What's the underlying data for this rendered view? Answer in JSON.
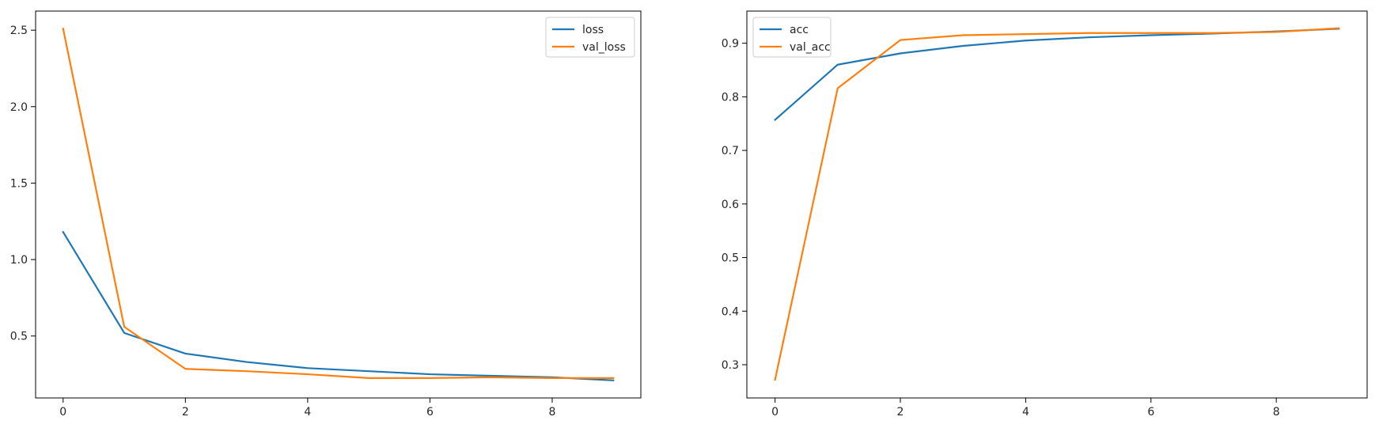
{
  "chart_data": [
    {
      "type": "line",
      "x": [
        0,
        1,
        2,
        3,
        4,
        5,
        6,
        7,
        8,
        9
      ],
      "series": [
        {
          "name": "loss",
          "color": "#1f77b4",
          "values": [
            1.18,
            0.52,
            0.385,
            0.33,
            0.29,
            0.27,
            0.25,
            0.24,
            0.23,
            0.21
          ]
        },
        {
          "name": "val_loss",
          "color": "#ff7f0e",
          "values": [
            2.51,
            0.56,
            0.285,
            0.27,
            0.25,
            0.225,
            0.225,
            0.23,
            0.225,
            0.225
          ]
        }
      ],
      "xticks": [
        0,
        2,
        4,
        6,
        8
      ],
      "yticks": [
        0.5,
        1.0,
        1.5,
        2.0,
        2.5
      ],
      "ytick_labels": [
        "0.5",
        "1.0",
        "1.5",
        "2.0",
        "2.5"
      ],
      "xlim": [
        -0.45,
        9.45
      ],
      "ylim": [
        0.095,
        2.625
      ],
      "legend_position": "top-right",
      "grid": false
    },
    {
      "type": "line",
      "x": [
        0,
        1,
        2,
        3,
        4,
        5,
        6,
        7,
        8,
        9
      ],
      "series": [
        {
          "name": "acc",
          "color": "#1f77b4",
          "values": [
            0.757,
            0.86,
            0.881,
            0.895,
            0.905,
            0.911,
            0.915,
            0.918,
            0.922,
            0.927
          ]
        },
        {
          "name": "val_acc",
          "color": "#ff7f0e",
          "values": [
            0.272,
            0.816,
            0.906,
            0.915,
            0.917,
            0.919,
            0.919,
            0.919,
            0.921,
            0.928
          ]
        }
      ],
      "xticks": [
        0,
        2,
        4,
        6,
        8
      ],
      "yticks": [
        0.3,
        0.4,
        0.5,
        0.6,
        0.7,
        0.8,
        0.9
      ],
      "ytick_labels": [
        "0.3",
        "0.4",
        "0.5",
        "0.6",
        "0.7",
        "0.8",
        "0.9"
      ],
      "xlim": [
        -0.45,
        9.45
      ],
      "ylim": [
        0.238,
        0.96
      ],
      "legend_position": "top-left",
      "grid": false
    }
  ]
}
